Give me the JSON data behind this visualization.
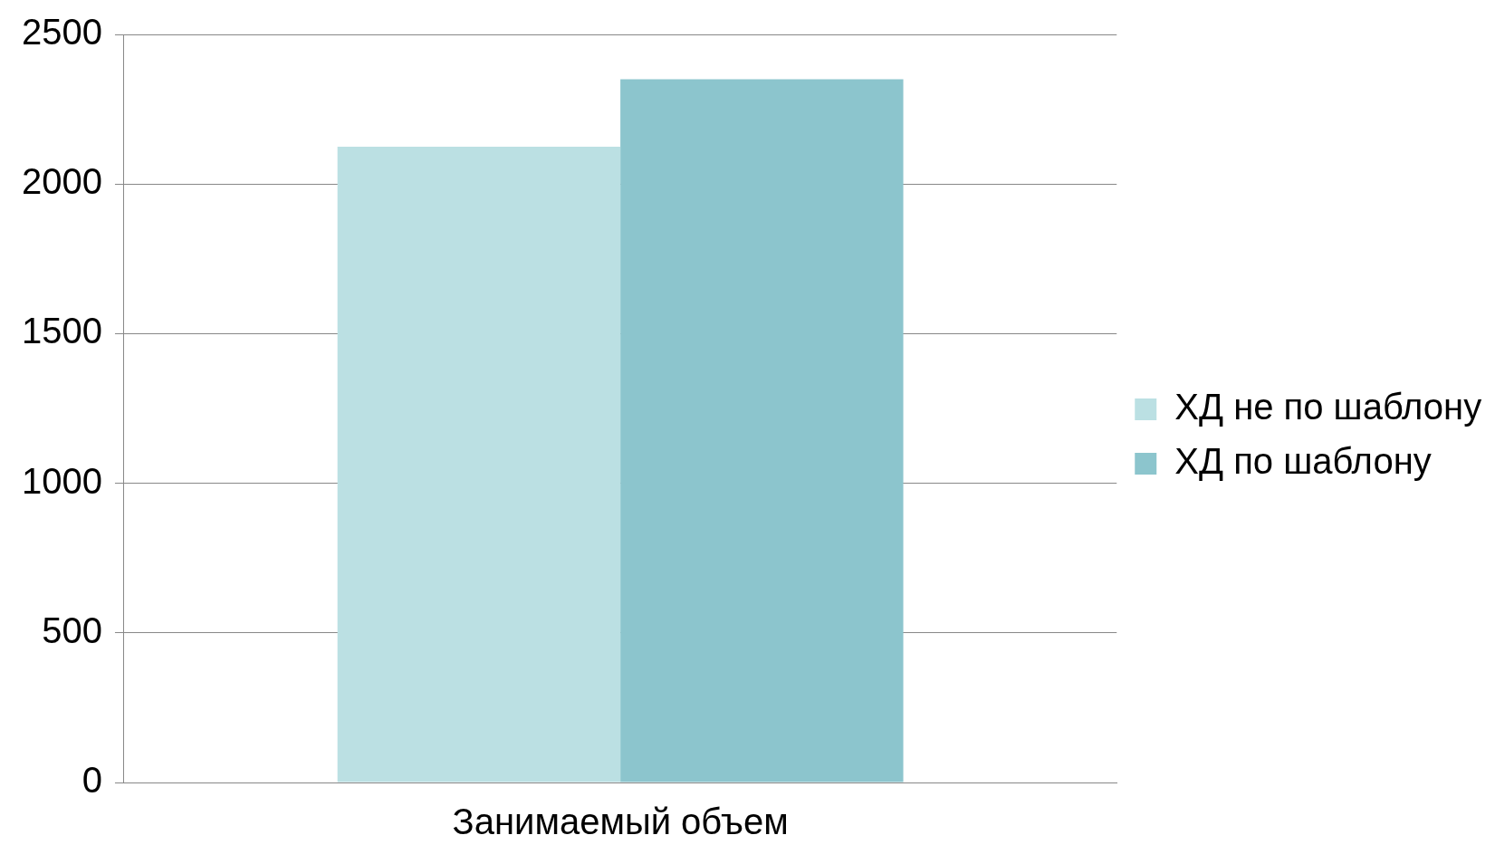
{
  "chart_data": {
    "type": "bar",
    "categories": [
      "Занимаемый объем"
    ],
    "series": [
      {
        "name": "ХД не по шаблону",
        "color": "#bbe0e3",
        "values": [
          2125
        ]
      },
      {
        "name": "ХД по шаблону",
        "color": "#8cc5cd",
        "values": [
          2350
        ]
      }
    ],
    "ylim": [
      0,
      2500
    ],
    "yticks": [
      0,
      500,
      1000,
      1500,
      2000,
      2500
    ],
    "grid": "y",
    "legend": "right"
  }
}
